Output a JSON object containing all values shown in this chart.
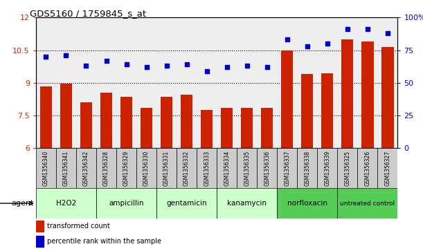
{
  "title": "GDS5160 / 1759845_s_at",
  "samples": [
    "GSM1356340",
    "GSM1356341",
    "GSM1356342",
    "GSM1356328",
    "GSM1356329",
    "GSM1356330",
    "GSM1356331",
    "GSM1356332",
    "GSM1356333",
    "GSM1356334",
    "GSM1356335",
    "GSM1356336",
    "GSM1356337",
    "GSM1356338",
    "GSM1356339",
    "GSM1356325",
    "GSM1356326",
    "GSM1356327"
  ],
  "transformed_count": [
    8.85,
    8.95,
    8.1,
    8.55,
    8.35,
    7.85,
    8.35,
    8.45,
    7.75,
    7.85,
    7.85,
    7.85,
    10.5,
    9.4,
    9.45,
    11.0,
    10.9,
    10.65
  ],
  "percentile_rank": [
    70,
    71,
    63,
    67,
    64,
    62,
    63,
    64,
    59,
    62,
    63,
    62,
    83,
    78,
    80,
    91,
    91,
    88
  ],
  "agents": [
    {
      "label": "H2O2",
      "start": 0,
      "end": 3,
      "color": "#ccffcc"
    },
    {
      "label": "ampicillin",
      "start": 3,
      "end": 6,
      "color": "#ccffcc"
    },
    {
      "label": "gentamicin",
      "start": 6,
      "end": 9,
      "color": "#ccffcc"
    },
    {
      "label": "kanamycin",
      "start": 9,
      "end": 12,
      "color": "#ccffcc"
    },
    {
      "label": "norfloxacin",
      "start": 12,
      "end": 15,
      "color": "#55cc55"
    },
    {
      "label": "untreated control",
      "start": 15,
      "end": 18,
      "color": "#55cc55"
    }
  ],
  "bar_color": "#cc2200",
  "dot_color": "#0000cc",
  "ylim_left": [
    6,
    12
  ],
  "ylim_right": [
    0,
    100
  ],
  "yticks_left": [
    6,
    7.5,
    9,
    10.5,
    12
  ],
  "ytick_labels_left": [
    "6",
    "7.5",
    "9",
    "10.5",
    "12"
  ],
  "ytick_labels_right": [
    "0",
    "25",
    "50",
    "75",
    "100%"
  ],
  "yticks_right": [
    0,
    25,
    50,
    75,
    100
  ],
  "hlines": [
    7.5,
    9.0,
    10.5
  ],
  "legend_transformed": "transformed count",
  "legend_percentile": "percentile rank within the sample",
  "bg_color": "#ffffff",
  "plot_bg_color": "#eeeeee",
  "xtick_bg_color": "#cccccc",
  "agent_label": "agent"
}
